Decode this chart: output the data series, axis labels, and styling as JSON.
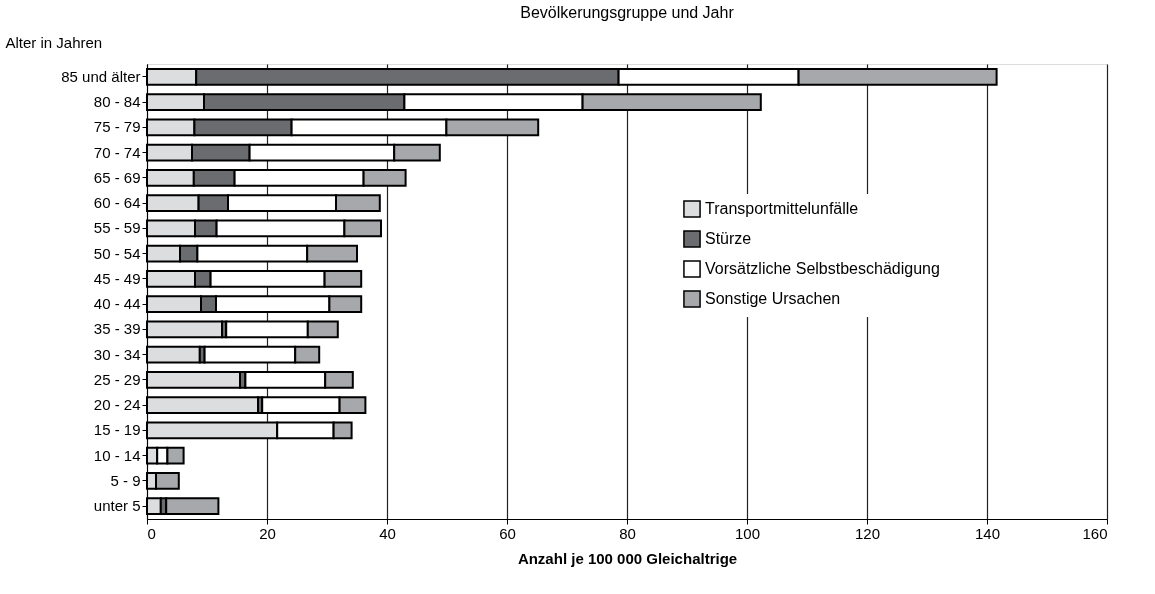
{
  "chart_data": {
    "type": "bar",
    "orientation": "horizontal",
    "stacked": true,
    "title": "Bevölkerungsgruppe und Jahr",
    "xlabel": "Anzahl je 100 000 Gleichaltrige",
    "ylabel": "Alter in Jahren",
    "categories": [
      "85 und älter",
      "80 - 84",
      "75 - 79",
      "70 - 74",
      "65 - 69",
      "60 - 64",
      "55 - 59",
      "50 - 54",
      "45 - 49",
      "40 - 44",
      "35 - 39",
      "30 - 34",
      "25 - 29",
      "20 - 24",
      "15 - 19",
      "10 - 14",
      "5 - 9",
      "unter 5"
    ],
    "series": [
      {
        "name": "Transportmittelunfälle",
        "color": "#dcdddf",
        "values": [
          8.2,
          9.5,
          7.9,
          7.5,
          7.8,
          8.6,
          8.0,
          5.5,
          8.0,
          9.0,
          12.5,
          8.8,
          15.5,
          18.5,
          21.7,
          1.7,
          1.5,
          2.3
        ]
      },
      {
        "name": "Stürze",
        "color": "#6b6c6f",
        "values": [
          70.4,
          33.4,
          16.2,
          9.6,
          6.8,
          4.9,
          3.6,
          2.9,
          2.6,
          2.5,
          0.7,
          0.8,
          0.9,
          0.7,
          0,
          0,
          0,
          0.9
        ]
      },
      {
        "name": "Vorsätzliche Selbstbeschädigung",
        "color": "#ffffff",
        "values": [
          30.0,
          29.7,
          25.8,
          24.1,
          21.5,
          18.0,
          21.3,
          18.3,
          19.0,
          18.9,
          13.6,
          15.1,
          13.3,
          12.9,
          9.4,
          1.7,
          0,
          0
        ]
      },
      {
        "name": "Sonstige Ursachen",
        "color": "#a7a8ab",
        "values": [
          33.0,
          29.7,
          15.3,
          7.6,
          7.0,
          7.3,
          6.1,
          8.3,
          6.1,
          5.3,
          5.0,
          4.0,
          4.6,
          4.3,
          3.0,
          2.7,
          3.8,
          8.7
        ]
      }
    ],
    "xlim": [
      0,
      160
    ],
    "xticks": [
      0,
      20,
      40,
      60,
      80,
      100,
      120,
      140,
      160
    ],
    "grid": "x",
    "legend": "top right"
  }
}
